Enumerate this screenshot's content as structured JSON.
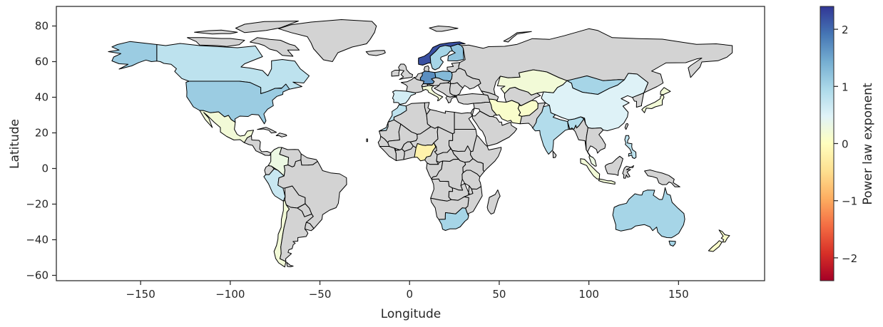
{
  "chart_data": {
    "type": "choropleth-map",
    "xlabel": "Longitude",
    "ylabel": "Latitude",
    "xlim": [
      -197,
      198
    ],
    "ylim": [
      -63,
      91
    ],
    "xticks": [
      -150,
      -100,
      -50,
      0,
      50,
      100,
      150
    ],
    "xtick_labels": [
      "−150",
      "−100",
      "−50",
      "0",
      "50",
      "100",
      "150"
    ],
    "yticks": [
      -60,
      -40,
      -20,
      0,
      20,
      40,
      60,
      80
    ],
    "ytick_labels": [
      "−60",
      "−40",
      "−20",
      "0",
      "20",
      "40",
      "60",
      "80"
    ],
    "grid": false,
    "colorbar": {
      "label": "Power law exponent",
      "colormap": "RdYlBu",
      "vmin": -2.4,
      "vmax": 2.4,
      "ticks": [
        -2,
        -1,
        0,
        1,
        2
      ],
      "tick_labels": [
        "−2",
        "−1",
        "0",
        "1",
        "2"
      ],
      "stops": [
        "#a50026",
        "#d73027",
        "#f46d43",
        "#fdae61",
        "#fee090",
        "#ffffbf",
        "#e0f3f8",
        "#abd9e9",
        "#74add1",
        "#4575b4",
        "#313695"
      ]
    },
    "no_data_color": "#d3d3d3",
    "countries": [
      {
        "name": "Canada",
        "value": 0.8
      },
      {
        "name": "Alaska (USA)",
        "value": 1.1
      },
      {
        "name": "United States",
        "value": 1.1
      },
      {
        "name": "Mexico",
        "value": 0.2
      },
      {
        "name": "Colombia",
        "value": 0.3
      },
      {
        "name": "Peru",
        "value": 0.7
      },
      {
        "name": "Chile",
        "value": 0.2
      },
      {
        "name": "Greenland",
        "value": null
      },
      {
        "name": "Brazil",
        "value": null
      },
      {
        "name": "Argentina",
        "value": null
      },
      {
        "name": "Norway",
        "value": 2.2
      },
      {
        "name": "Finland",
        "value": 1.2
      },
      {
        "name": "Sweden",
        "value": 1.0
      },
      {
        "name": "Germany",
        "value": 1.7
      },
      {
        "name": "Poland",
        "value": 1.3
      },
      {
        "name": "Italy",
        "value": 0.2
      },
      {
        "name": "Spain",
        "value": 0.6
      },
      {
        "name": "Russia",
        "value": null
      },
      {
        "name": "Kazakhstan",
        "value": 0.2
      },
      {
        "name": "Mongolia",
        "value": 1.0
      },
      {
        "name": "China",
        "value": 0.5
      },
      {
        "name": "India",
        "value": 0.9
      },
      {
        "name": "Iran / Afghanistan",
        "value": 0.1
      },
      {
        "name": "Western Sahara / Morocco",
        "value": 0.8
      },
      {
        "name": "Nigeria",
        "value": -0.2
      },
      {
        "name": "South Africa",
        "value": 1.0
      },
      {
        "name": "Australia",
        "value": 1.0
      },
      {
        "name": "New Zealand",
        "value": 0.1
      },
      {
        "name": "Japan",
        "value": 0.2
      },
      {
        "name": "Indonesia",
        "value": 0.2
      },
      {
        "name": "Philippines",
        "value": 0.8
      },
      {
        "name": "Malaysia",
        "value": 0.3
      },
      {
        "name": "Africa (others)",
        "value": null
      },
      {
        "name": "Middle East",
        "value": null
      },
      {
        "name": "Southeast Asia (others)",
        "value": null
      }
    ]
  }
}
